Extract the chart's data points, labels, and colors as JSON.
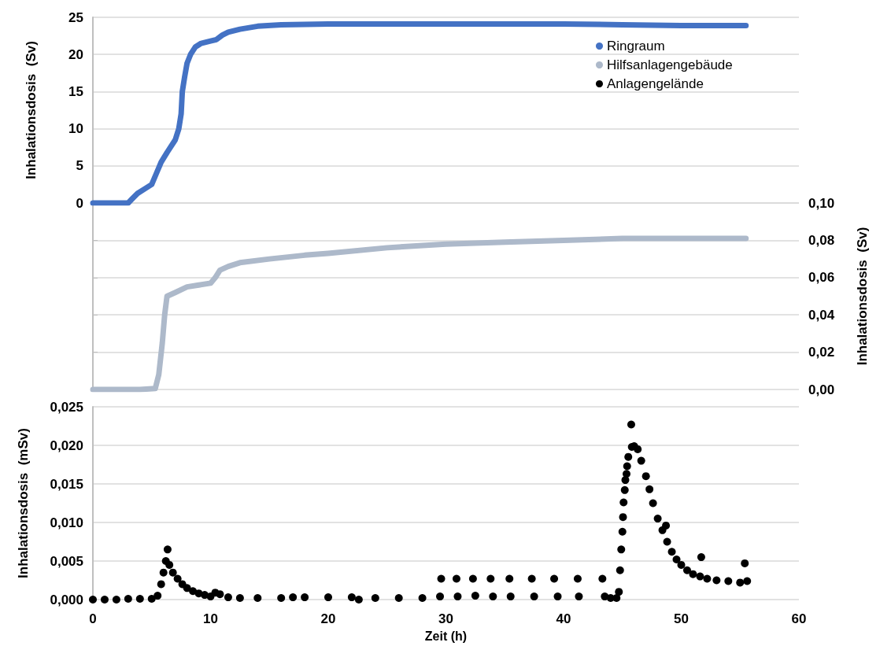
{
  "chart_data": [
    {
      "type": "line",
      "ylabel": "Inhalationsdosis  (Sv)",
      "xlim": [
        0,
        60
      ],
      "ylim": [
        0,
        25
      ],
      "yticks": [
        0,
        5,
        10,
        15,
        20,
        25
      ],
      "tick_labels": "y",
      "grid": "y",
      "legend": "top right",
      "marker": "none",
      "series": [
        {
          "name": "Ringraum",
          "color": "#4472c4",
          "x": [
            0,
            1,
            2,
            3,
            3.3,
            3.8,
            4.5,
            5,
            5.4,
            5.8,
            6.3,
            7,
            7.3,
            7.5,
            7.6,
            7.8,
            8,
            8.3,
            8.7,
            9.2,
            10,
            10.5,
            11,
            11.5,
            12.5,
            14,
            16,
            20,
            30,
            40,
            45,
            50,
            55.5
          ],
          "values": [
            0,
            0,
            0,
            0,
            0.5,
            1.3,
            2,
            2.5,
            4,
            5.5,
            6.8,
            8.5,
            10,
            12,
            15,
            17,
            18.8,
            20,
            21,
            21.5,
            21.8,
            22,
            22.6,
            23,
            23.4,
            23.8,
            24,
            24.1,
            24.1,
            24.1,
            24,
            23.9,
            23.9
          ]
        }
      ]
    },
    {
      "type": "line",
      "y2label": "Inhalationsdosis  (Sv)",
      "xlim": [
        0,
        60
      ],
      "y2lim": [
        0,
        0.1
      ],
      "y2ticks": [
        {
          "value": 0,
          "label": "0,00"
        },
        {
          "value": 0.02,
          "label": "0,02"
        },
        {
          "value": 0.04,
          "label": "0,04"
        },
        {
          "value": 0.06,
          "label": "0,06"
        },
        {
          "value": 0.08,
          "label": "0,08"
        },
        {
          "value": 0.1,
          "label": "0,10"
        }
      ],
      "tick_labels": "y2",
      "grid": "y",
      "legend": "top right",
      "marker": "none",
      "series": [
        {
          "name": "Hilfsanlagengebäude",
          "color": "#adb9ca",
          "axis": "y2",
          "x": [
            0,
            2,
            4,
            5.3,
            5.6,
            5.9,
            6.1,
            6.3,
            7,
            8,
            9,
            10,
            10.4,
            10.8,
            11.5,
            12.5,
            15,
            18,
            20,
            25,
            30,
            35,
            40,
            45,
            50,
            55.5
          ],
          "values": [
            0,
            0,
            0,
            0.0005,
            0.008,
            0.025,
            0.04,
            0.05,
            0.052,
            0.055,
            0.056,
            0.057,
            0.06,
            0.064,
            0.066,
            0.068,
            0.07,
            0.072,
            0.073,
            0.076,
            0.078,
            0.079,
            0.08,
            0.081,
            0.081,
            0.081
          ]
        }
      ]
    },
    {
      "type": "scatter",
      "xlabel": "Zeit (h)",
      "ylabel": "Inhalationsdosis  (mSv)",
      "xlim": [
        0,
        60
      ],
      "xticks": [
        0,
        10,
        20,
        30,
        40,
        50,
        60
      ],
      "ylim": [
        0,
        0.025
      ],
      "yticks": [
        {
          "value": 0,
          "label": "0,000"
        },
        {
          "value": 0.005,
          "label": "0,005"
        },
        {
          "value": 0.01,
          "label": "0,010"
        },
        {
          "value": 0.015,
          "label": "0,015"
        },
        {
          "value": 0.02,
          "label": "0,020"
        },
        {
          "value": 0.025,
          "label": "0,025"
        }
      ],
      "grid": "y",
      "legend": "top right",
      "marker": "circle",
      "series": [
        {
          "name": "Anlagengelände",
          "color": "#000000",
          "x": [
            0,
            1,
            2,
            3,
            4,
            5,
            5.5,
            5.8,
            6.0,
            6.2,
            6.35,
            6.5,
            6.8,
            7.2,
            7.6,
            8,
            8.5,
            9,
            9.5,
            10,
            10.4,
            10.8,
            11.5,
            12.5,
            14,
            16,
            17,
            18,
            20,
            22,
            22.6,
            24,
            26,
            28,
            29.5,
            29.6,
            30.9,
            31,
            32.3,
            32.5,
            33.8,
            34,
            35.4,
            35.5,
            37.3,
            37.5,
            39.2,
            39.5,
            41.2,
            41.3,
            43.3,
            43.5,
            44,
            44.5,
            44.7,
            44.8,
            44.9,
            45.0,
            45.05,
            45.1,
            45.2,
            45.25,
            45.35,
            45.4,
            45.5,
            45.75,
            45.8,
            46,
            46.3,
            46.6,
            47,
            47.3,
            47.6,
            48,
            48.4,
            48.7,
            48.8,
            49.2,
            49.6,
            50,
            50.5,
            51,
            51.7,
            51.6,
            52.2,
            53,
            54,
            55,
            55.4,
            55.6
          ],
          "values": [
            0,
            0,
            0,
            0.0001,
            0.0001,
            0.0001,
            0.0005,
            0.002,
            0.0035,
            0.005,
            0.0065,
            0.0045,
            0.0035,
            0.0027,
            0.002,
            0.0015,
            0.0011,
            0.0008,
            0.0006,
            0.0004,
            0.0009,
            0.0007,
            0.0003,
            0.0002,
            0.0002,
            0.0002,
            0.0003,
            0.0003,
            0.0003,
            0.0003,
            0,
            0.0002,
            0.0002,
            0.0002,
            0.0004,
            0.0027,
            0.0027,
            0.0004,
            0.0027,
            0.0005,
            0.0027,
            0.0004,
            0.0027,
            0.0004,
            0.0027,
            0.0004,
            0.0027,
            0.0004,
            0.0027,
            0.0004,
            0.0027,
            0.0004,
            0.0002,
            0.0002,
            0.001,
            0.0038,
            0.0065,
            0.0088,
            0.0107,
            0.0126,
            0.0142,
            0.0155,
            0.0163,
            0.0173,
            0.0185,
            0.0227,
            0.0198,
            0.0199,
            0.0195,
            0.018,
            0.016,
            0.0143,
            0.0125,
            0.0105,
            0.009,
            0.0096,
            0.0075,
            0.0062,
            0.0052,
            0.0045,
            0.0038,
            0.0033,
            0.0055,
            0.003,
            0.0027,
            0.0025,
            0.0024,
            0.0022,
            0.0047,
            0.0024
          ]
        }
      ]
    }
  ]
}
